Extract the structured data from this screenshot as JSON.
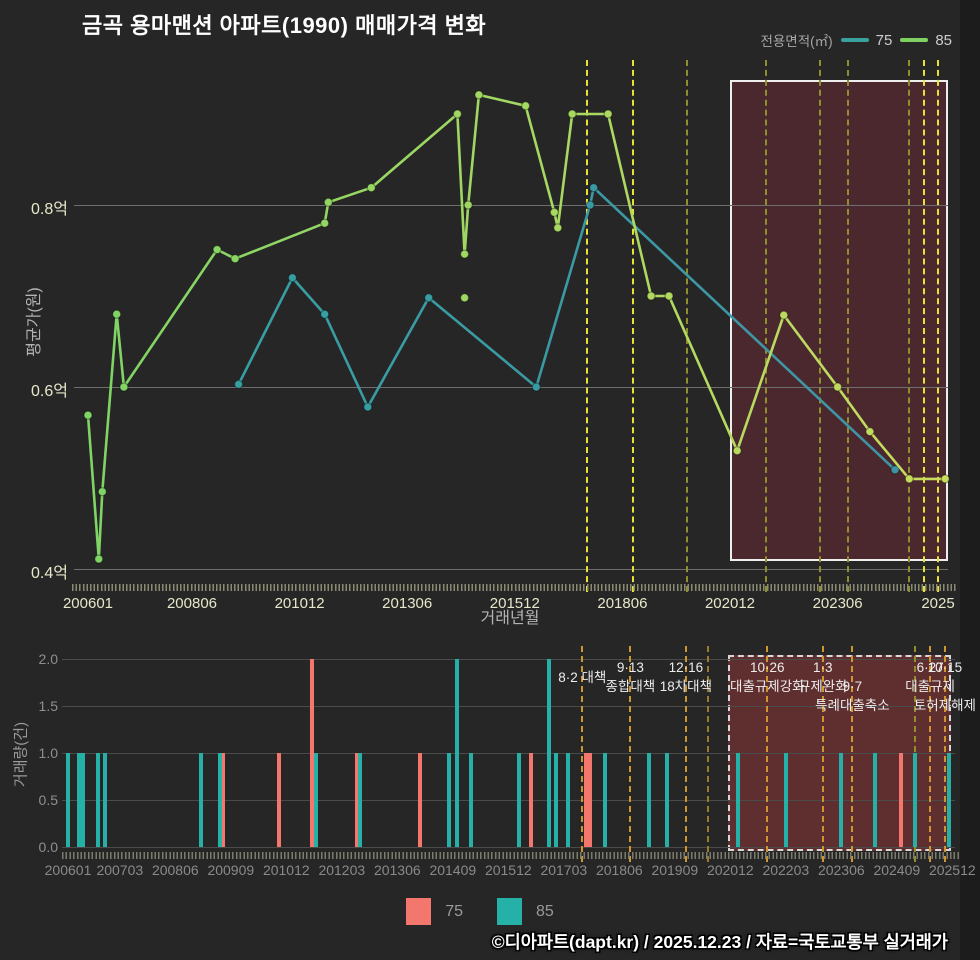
{
  "title": "금곡 용마맨션 아파트(1990) 매매가격 변화",
  "footer": "©디아파트(dapt.kr) / 2025.12.23 / 자료=국토교통부 실거래가",
  "colors": {
    "background": "#262627",
    "grid_top": "#6e6e6e",
    "grid_bottom": "#4b4b4b",
    "policy_bright": "#e9e234",
    "policy_olive": "#8f8f2d",
    "policy_orange": "#cf9630",
    "policy_dark": "#9c7b28",
    "box_top_fill": "rgba(158,45,58,0.30)",
    "box_top_border": "#eeeeee",
    "box_bottom_fill": "rgba(205,62,62,0.34)",
    "box_bottom_border": "#d8d8d8",
    "annotation_text": "#ededed"
  },
  "legend_top": {
    "label": "전용면적(㎡)",
    "items": [
      {
        "name": "75",
        "color": "#3aa09c"
      },
      {
        "name": "85",
        "color": "#7fd25f"
      }
    ]
  },
  "legend_bottom": {
    "items": [
      {
        "name": "75",
        "color": "#f4776e"
      },
      {
        "name": "85",
        "color": "#25b1a8"
      }
    ]
  },
  "policy_lines": [
    {
      "ym": "201708",
      "top": "bright",
      "bot": "orange"
    },
    {
      "ym": "201809",
      "top": "bright",
      "bot": "orange"
    },
    {
      "ym": "201912",
      "top": "olive",
      "bot": "orange"
    },
    {
      "ym": "202006",
      "top": null,
      "bot": "dark"
    },
    {
      "ym": "202110",
      "top": "olive",
      "bot": "orange"
    },
    {
      "ym": "202301",
      "top": "olive",
      "bot": "orange"
    },
    {
      "ym": "202309",
      "top": "olive",
      "bot": "orange"
    },
    {
      "ym": "202502",
      "top": "olive",
      "bot": "olive"
    },
    {
      "ym": "202506",
      "top": "bright",
      "bot": "orange"
    },
    {
      "ym": "202510",
      "top": "bright",
      "bot": "orange"
    }
  ],
  "chart_data": [
    {
      "type": "line",
      "name": "price-history",
      "title": "매매가격 변화",
      "xlabel": "거래년월",
      "ylabel": "평균가(원)",
      "ylim": [
        0.39,
        0.96
      ],
      "grid": true,
      "legend_position": "top-right",
      "yticks": [
        {
          "label": "0.4억",
          "value": 0.4
        },
        {
          "label": "0.6억",
          "value": 0.6
        },
        {
          "label": "0.8억",
          "value": 0.8
        }
      ],
      "xticks": [
        {
          "ym": "200601",
          "label": "200601"
        },
        {
          "ym": "200806",
          "label": "200806"
        },
        {
          "ym": "201012",
          "label": "201012"
        },
        {
          "ym": "201306",
          "label": "201306"
        },
        {
          "ym": "201512",
          "label": "201512"
        },
        {
          "ym": "201806",
          "label": "201806"
        },
        {
          "ym": "202012",
          "label": "202012"
        },
        {
          "ym": "202306",
          "label": "202306"
        },
        {
          "ym": "202510",
          "label": "2025"
        }
      ],
      "highlight": {
        "start_ym": "202012",
        "end": "axis-end"
      },
      "series": [
        {
          "name": "75",
          "color_start": "#35a2a0",
          "color_end": "#3f93a6",
          "points": [
            [
              "200907",
              0.603
            ],
            [
              "201010",
              0.72
            ],
            [
              "201107",
              0.68
            ],
            [
              "201207",
              0.578
            ],
            [
              "201312",
              0.698
            ],
            [
              "201606",
              0.6
            ],
            [
              "201709",
              0.8
            ],
            [
              "201710",
              0.819
            ],
            [
              "202410",
              0.509
            ]
          ]
        },
        {
          "name": "85",
          "color_start": "#7dd465",
          "color_end": "#cadb5e",
          "points": [
            [
              "200601",
              0.569
            ],
            [
              "200604",
              0.411
            ],
            [
              "200605",
              0.485
            ],
            [
              "200609",
              0.68
            ],
            [
              "200611",
              0.6
            ],
            [
              "200901",
              0.751
            ],
            [
              "200906",
              0.741
            ],
            [
              "201107",
              0.78
            ],
            [
              "201108",
              0.803
            ],
            [
              "201208",
              0.819
            ],
            [
              "201408",
              0.9
            ],
            [
              "201410",
              0.746
            ],
            [
              "201411",
              0.8
            ],
            [
              "201502",
              0.921
            ],
            [
              "201603",
              0.909
            ],
            [
              "201611",
              0.792
            ],
            [
              "201612",
              0.775
            ],
            [
              "201704",
              0.9
            ],
            [
              "201802",
              0.9
            ],
            [
              "201902",
              0.7
            ],
            [
              "201907",
              0.7
            ],
            [
              "202102",
              0.53
            ],
            [
              "202203",
              0.679
            ],
            [
              "202306",
              0.6
            ],
            [
              "202403",
              0.551
            ],
            [
              "202502",
              0.499
            ],
            [
              "202512",
              0.499
            ]
          ],
          "outlier_points": [
            [
              "201410",
              0.698
            ]
          ]
        }
      ]
    },
    {
      "type": "bar",
      "name": "transaction-volume",
      "title": "거래량",
      "xlabel": "",
      "ylabel": "거래량(건)",
      "ylim": [
        0,
        2
      ],
      "grid": true,
      "yticks": [
        {
          "label": "0.0",
          "value": 0
        },
        {
          "label": "0.5",
          "value": 0.5
        },
        {
          "label": "1.0",
          "value": 1
        },
        {
          "label": "1.5",
          "value": 1.5
        },
        {
          "label": "2.0",
          "value": 2
        }
      ],
      "xticks": [
        {
          "ym": "200601",
          "label": "200601"
        },
        {
          "ym": "200703",
          "label": "200703"
        },
        {
          "ym": "200806",
          "label": "200806"
        },
        {
          "ym": "200909",
          "label": "200909"
        },
        {
          "ym": "201012",
          "label": "201012"
        },
        {
          "ym": "201203",
          "label": "201203"
        },
        {
          "ym": "201306",
          "label": "201306"
        },
        {
          "ym": "201409",
          "label": "201409"
        },
        {
          "ym": "201512",
          "label": "201512"
        },
        {
          "ym": "201703",
          "label": "201703"
        },
        {
          "ym": "201806",
          "label": "201806"
        },
        {
          "ym": "201909",
          "label": "201909"
        },
        {
          "ym": "202012",
          "label": "202012"
        },
        {
          "ym": "202203",
          "label": "202203"
        },
        {
          "ym": "202306",
          "label": "202306"
        },
        {
          "ym": "202409",
          "label": "202409"
        },
        {
          "ym": "202512",
          "label": "202512"
        }
      ],
      "highlight": {
        "start_ym": "202012",
        "end": "axis-end"
      },
      "series": [
        {
          "name": "75",
          "color": "#f4776e",
          "bars": [
            [
              "200907",
              1
            ],
            [
              "201010",
              1
            ],
            [
              "201107",
              2
            ],
            [
              "201207",
              1
            ],
            [
              "201312",
              1
            ],
            [
              "201606",
              1
            ],
            [
              "201709",
              1
            ],
            [
              "201710",
              1
            ],
            [
              "202410",
              1
            ]
          ]
        },
        {
          "name": "85",
          "color": "#25b1a8",
          "bars": [
            [
              "200601",
              1
            ],
            [
              "200604",
              1
            ],
            [
              "200605",
              1
            ],
            [
              "200609",
              1
            ],
            [
              "200611",
              1
            ],
            [
              "200901",
              1
            ],
            [
              "200906",
              1
            ],
            [
              "201108",
              1
            ],
            [
              "201208",
              1
            ],
            [
              "201408",
              1
            ],
            [
              "201410",
              2
            ],
            [
              "201502",
              1
            ],
            [
              "201603",
              1
            ],
            [
              "201611",
              2
            ],
            [
              "201701",
              1
            ],
            [
              "201704",
              1
            ],
            [
              "201802",
              1
            ],
            [
              "201902",
              1
            ],
            [
              "201907",
              1
            ],
            [
              "202102",
              1
            ],
            [
              "202203",
              1
            ],
            [
              "202306",
              1
            ],
            [
              "202403",
              1
            ],
            [
              "202502",
              1
            ],
            [
              "202511",
              1
            ]
          ]
        }
      ],
      "annotations": [
        {
          "ym": "201708",
          "row": 0.5,
          "text": "8·2 대책"
        },
        {
          "ym": "201809",
          "row": 0,
          "text": "9·13"
        },
        {
          "ym": "201809",
          "row": 1,
          "text": "종합대책"
        },
        {
          "ym": "201912",
          "row": 0,
          "text": "12·16"
        },
        {
          "ym": "201912",
          "row": 1,
          "text": "18차대책"
        },
        {
          "ym": "202110",
          "row": 0,
          "text": "10·26"
        },
        {
          "ym": "202110",
          "row": 1,
          "text": "대출규제강화"
        },
        {
          "ym": "202301",
          "row": 0,
          "text": "1·3"
        },
        {
          "ym": "202301",
          "row": 1,
          "text": "규제완화"
        },
        {
          "ym": "202309",
          "row": 1,
          "text": "9·7"
        },
        {
          "ym": "202309",
          "row": 2,
          "text": "특례대출축소"
        },
        {
          "ym": "202506",
          "row": 0,
          "text": "6·27"
        },
        {
          "ym": "202506",
          "row": 1,
          "text": "대출규제"
        },
        {
          "ym": "202510",
          "row": 0,
          "text": "10·15"
        },
        {
          "ym": "202510",
          "row": 2,
          "text": "토허제해제"
        }
      ]
    }
  ]
}
